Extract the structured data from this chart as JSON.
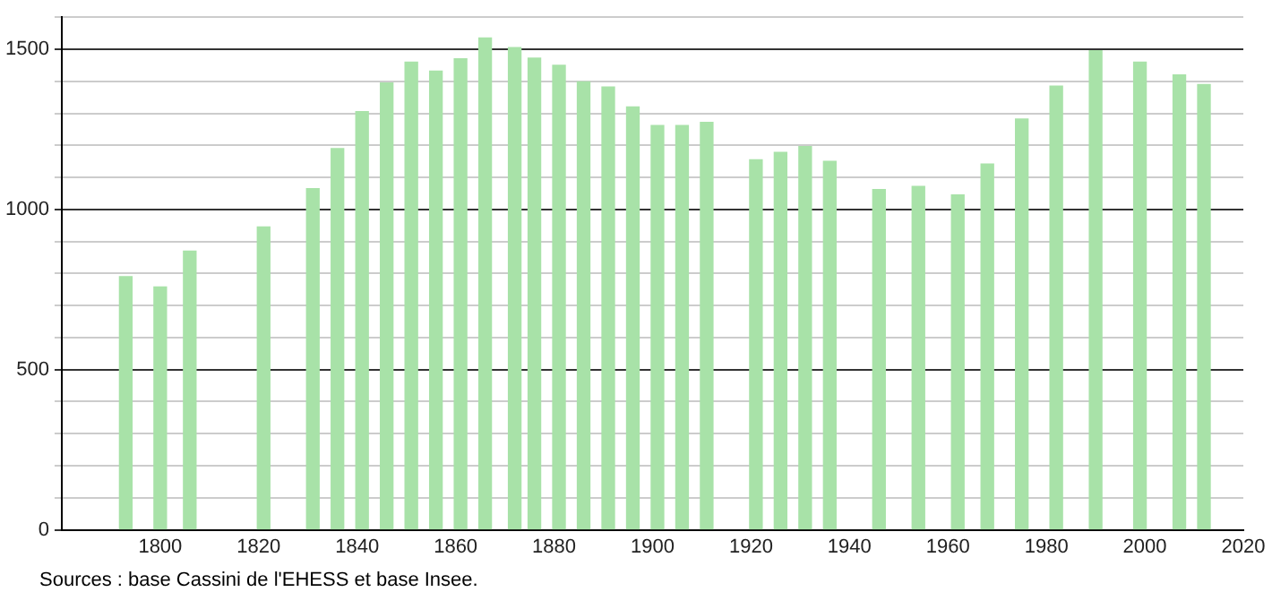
{
  "chart_data": {
    "type": "bar",
    "x": [
      1793,
      1800,
      1806,
      1821,
      1831,
      1836,
      1841,
      1846,
      1851,
      1856,
      1861,
      1866,
      1872,
      1876,
      1881,
      1886,
      1891,
      1896,
      1901,
      1906,
      1911,
      1921,
      1926,
      1931,
      1936,
      1946,
      1954,
      1962,
      1968,
      1975,
      1982,
      1990,
      1999,
      2007,
      2012
    ],
    "values": [
      790,
      758,
      870,
      945,
      1065,
      1190,
      1305,
      1395,
      1460,
      1432,
      1470,
      1535,
      1505,
      1472,
      1450,
      1398,
      1382,
      1320,
      1262,
      1262,
      1272,
      1155,
      1178,
      1196,
      1150,
      1062,
      1072,
      1045,
      1142,
      1282,
      1385,
      1495,
      1460,
      1420,
      1390
    ],
    "color": "#a8e2a8",
    "xlim": [
      1780,
      2020
    ],
    "xticks": [
      1800,
      1820,
      1840,
      1860,
      1880,
      1900,
      1920,
      1940,
      1960,
      1980,
      2000,
      2020
    ],
    "ylim": [
      0,
      1600
    ],
    "yticks": [
      0,
      {
        "value": 100,
        "label": null
      },
      {
        "value": 200,
        "label": null
      },
      {
        "value": 300,
        "label": null
      },
      {
        "value": 400,
        "label": null
      },
      500,
      {
        "value": 600,
        "label": null
      },
      {
        "value": 700,
        "label": null
      },
      {
        "value": 800,
        "label": null
      },
      {
        "value": 900,
        "label": null
      },
      1000,
      {
        "value": 1100,
        "label": null
      },
      {
        "value": 1200,
        "label": null
      },
      {
        "value": 1300,
        "label": null
      },
      {
        "value": 1400,
        "label": null
      },
      1500,
      {
        "value": 1600,
        "label": null
      }
    ],
    "grid": "y",
    "annotations": [
      "Sources : base Cassini de l'EHESS et base Insee."
    ]
  }
}
